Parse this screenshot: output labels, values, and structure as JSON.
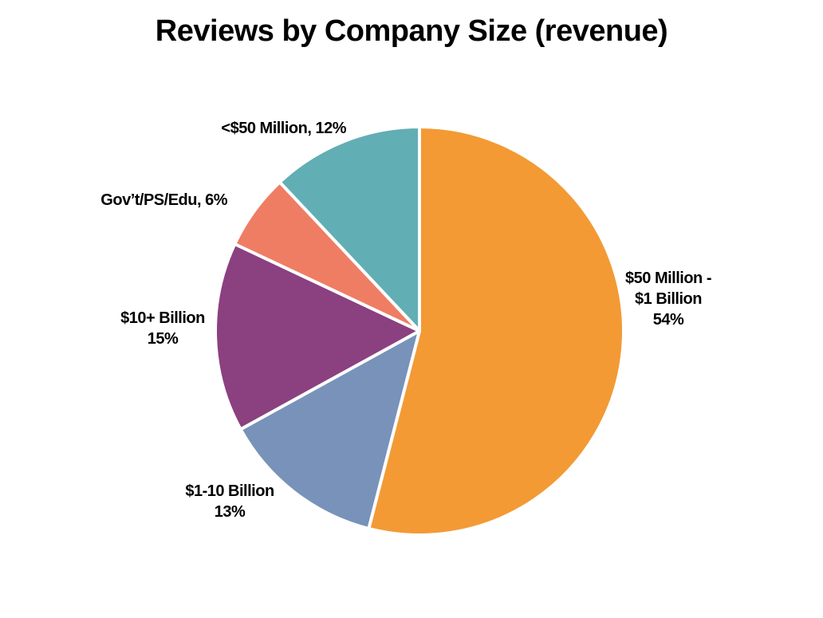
{
  "chart_data": {
    "type": "pie",
    "title": "Reviews by Company Size (revenue)",
    "slices": [
      {
        "name": "$50 Million - $1 Billion",
        "value": 54,
        "color": "#F39A35",
        "label_lines": [
          "$50 Million -",
          "$1 Billion",
          "54%"
        ]
      },
      {
        "name": "$1-10 Billion",
        "value": 13,
        "color": "#7892BA",
        "label_lines": [
          "$1-10 Billion",
          "13%"
        ]
      },
      {
        "name": "$10+ Billion",
        "value": 15,
        "color": "#8B4080",
        "label_lines": [
          "$10+ Billion",
          "15%"
        ]
      },
      {
        "name": "Gov't/PS/Edu",
        "value": 6,
        "color": "#EF7D63",
        "label_lines": [
          "Gov’t/PS/Edu, 6%"
        ]
      },
      {
        "name": "<$50 Million",
        "value": 12,
        "color": "#62AEB5",
        "label_lines": [
          "<$50 Million, 12%"
        ]
      }
    ],
    "start_angle": "top",
    "direction": "clockwise",
    "slice_border_color": "#ffffff"
  }
}
